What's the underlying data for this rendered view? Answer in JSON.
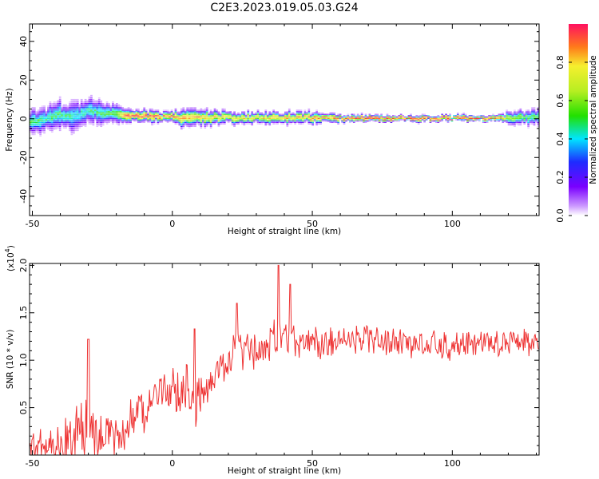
{
  "figure": {
    "title": "C2E3.2023.019.05.03.G24"
  },
  "chart_data": [
    {
      "type": "heatmap",
      "xlabel": "Height of straight line (km)",
      "ylabel": "Frequency (Hz)",
      "xlim": [
        -51,
        131
      ],
      "ylim": [
        -50,
        49
      ],
      "xticks": [
        -50,
        0,
        50,
        100
      ],
      "yticks": [
        -40,
        -20,
        0,
        20,
        40
      ],
      "grid": false,
      "colorbar": {
        "label": "Normalized spectral amplitude",
        "range": [
          0.0,
          1.0
        ],
        "ticks": [
          0.0,
          0.2,
          0.4,
          0.6,
          0.8
        ],
        "colormap": "rainbow (purple-blue-cyan-green-yellow-red)"
      },
      "ridge": {
        "x": [
          -51,
          -45,
          -40,
          -35,
          -30,
          -25,
          -20,
          -17,
          -10,
          0,
          2,
          10,
          20,
          30,
          40,
          50,
          60,
          70,
          80,
          90,
          100,
          110,
          116,
          120,
          125,
          131
        ],
        "frequency": [
          -2,
          0,
          2,
          1,
          4,
          3,
          2,
          1.5,
          1.2,
          1,
          0,
          0.5,
          0.5,
          0.4,
          0.5,
          0.3,
          0.2,
          0.1,
          0.1,
          0.1,
          0.1,
          0.1,
          0.1,
          0.3,
          0.5,
          1
        ],
        "peak_amplitude": [
          0.5,
          0.45,
          0.5,
          0.4,
          0.45,
          0.5,
          0.55,
          0.95,
          0.95,
          0.9,
          0.85,
          0.8,
          0.75,
          0.75,
          0.8,
          0.85,
          0.9,
          1.0,
          1.0,
          1.0,
          1.0,
          1.0,
          0.95,
          0.6,
          0.55,
          0.5
        ],
        "spread_hz": [
          6,
          6,
          7,
          8,
          7,
          6,
          5,
          3,
          3,
          3,
          4,
          4,
          3,
          3,
          3,
          3,
          2,
          1.5,
          1.5,
          1.5,
          1.5,
          1.5,
          1.5,
          3,
          4,
          4
        ]
      },
      "colors": {
        "purple": "#8a00ff",
        "blue": "#1e2cff",
        "cyan": "#00e5ff",
        "green": "#22e000",
        "yellow": "#f6ef2e",
        "red": "#ee2020"
      }
    },
    {
      "type": "line",
      "xlabel": "Height of straight line (km)",
      "ylabel": "SNR (10 * v/v)",
      "multiplier_label": "(x10",
      "multiplier_exponent": "4",
      "multiplier_close": ")",
      "xlim": [
        -51,
        131
      ],
      "ylim": [
        0.0,
        2.02
      ],
      "xticks": [
        -50,
        0,
        50,
        100
      ],
      "yticks": [
        0.5,
        1.0,
        1.5,
        2.0
      ],
      "ytick_labels": [
        "0.5",
        "1.0",
        "1.5",
        "2.0"
      ],
      "grid": false,
      "series": [
        {
          "color": "#ee3333",
          "x": [
            -51,
            -45,
            -40,
            -35,
            -32,
            -30,
            -25,
            -20,
            -15,
            -10,
            -5,
            0,
            5,
            8,
            10,
            15,
            20,
            22,
            25,
            30,
            35,
            38,
            40,
            45,
            50,
            55,
            60,
            65,
            70,
            75,
            80,
            85,
            90,
            95,
            100,
            105,
            110,
            115,
            120,
            125,
            131
          ],
          "envelope": [
            0.2,
            0.25,
            0.3,
            0.45,
            0.6,
            0.5,
            0.45,
            0.4,
            0.55,
            0.7,
            0.8,
            0.9,
            0.95,
            0.8,
            0.9,
            1.0,
            1.1,
            1.3,
            1.25,
            1.25,
            1.35,
            1.45,
            1.35,
            1.35,
            1.3,
            1.35,
            1.35,
            1.35,
            1.35,
            1.3,
            1.35,
            1.3,
            1.3,
            1.3,
            1.25,
            1.3,
            1.3,
            1.3,
            1.3,
            1.3,
            1.3
          ],
          "amplitude": [
            0.22,
            0.25,
            0.28,
            0.35,
            0.45,
            0.38,
            0.28,
            0.25,
            0.25,
            0.25,
            0.22,
            0.25,
            0.3,
            0.35,
            0.25,
            0.22,
            0.2,
            0.25,
            0.2,
            0.2,
            0.22,
            0.28,
            0.2,
            0.18,
            0.18,
            0.18,
            0.16,
            0.16,
            0.16,
            0.15,
            0.16,
            0.16,
            0.15,
            0.15,
            0.15,
            0.15,
            0.15,
            0.15,
            0.15,
            0.16,
            0.15
          ],
          "notable_peaks": [
            {
              "x": -30,
              "y": 1.22
            },
            {
              "x": 8,
              "y": 1.33
            },
            {
              "x": 23,
              "y": 1.6
            },
            {
              "x": 38,
              "y": 2.0
            },
            {
              "x": 42,
              "y": 1.8
            }
          ]
        }
      ]
    }
  ]
}
